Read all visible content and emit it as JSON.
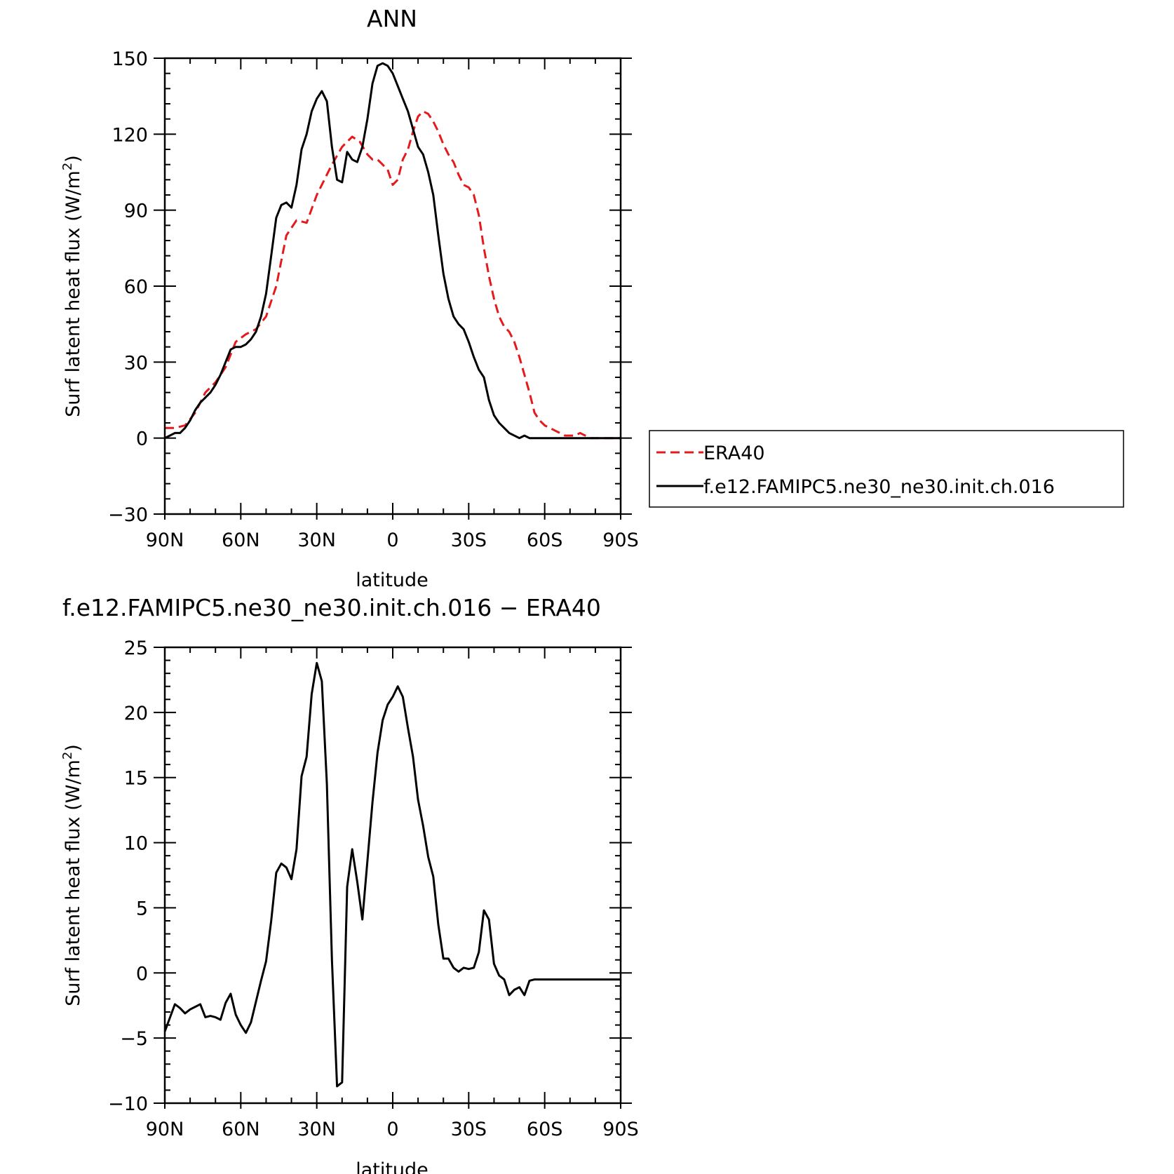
{
  "chart_data": [
    {
      "type": "line",
      "title": "ANN",
      "xlabel": "latitude",
      "ylabel": "Surf latent heat flux (W/m²)",
      "ylabel_main": "Surf latent heat flux (W/m",
      "ylabel_sup": "2",
      "ylabel_close": ")",
      "xlim": [
        90,
        -90
      ],
      "ylim": [
        -30,
        150
      ],
      "x_ticks": [
        90,
        60,
        30,
        0,
        -30,
        -60,
        -90
      ],
      "x_tick_labels": [
        "90N",
        "60N",
        "30N",
        "0",
        "30S",
        "60S",
        "90S"
      ],
      "y_ticks": [
        -30,
        0,
        30,
        60,
        90,
        120,
        150
      ],
      "y_tick_labels": [
        "−30",
        "0",
        "30",
        "60",
        "90",
        "120",
        "150"
      ],
      "legend": {
        "position": "right",
        "entries": [
          "ERA40",
          "f.e12.FAMIPC5.ne30_ne30.init.ch.016"
        ]
      },
      "series": [
        {
          "name": "ERA40",
          "color": "#e41a1c",
          "dash": "dashed",
          "x": [
            90,
            86,
            82,
            78,
            74,
            70,
            66,
            62,
            58,
            54,
            50,
            46,
            42,
            38,
            34,
            30,
            28,
            26,
            24,
            20,
            16,
            13,
            10,
            8,
            6,
            4,
            2,
            0,
            -2,
            -4,
            -6,
            -8,
            -10,
            -12,
            -14,
            -16,
            -18,
            -20,
            -22,
            -24,
            -26,
            -28,
            -30,
            -32,
            -34,
            -36,
            -38,
            -40,
            -42,
            -44,
            -46,
            -48,
            -50,
            -52,
            -54,
            -56,
            -58,
            -60,
            -62,
            -64,
            -66,
            -68,
            -70,
            -72,
            -74,
            -76,
            -78,
            -80,
            -82,
            -84,
            -86,
            -88,
            -90
          ],
          "y": [
            4,
            4,
            5,
            10,
            18,
            22,
            28,
            38,
            41,
            43,
            48,
            60,
            80,
            86,
            85,
            96,
            100,
            104,
            108,
            115,
            119,
            117,
            112,
            110,
            110,
            108,
            106,
            100,
            102,
            110,
            114,
            121,
            127,
            129,
            128,
            125,
            121,
            116,
            112,
            109,
            104,
            100,
            99,
            96,
            88,
            75,
            64,
            55,
            48,
            44,
            42,
            38,
            32,
            25,
            18,
            10,
            7,
            5,
            4,
            3,
            2,
            1,
            1,
            1,
            2,
            1,
            0,
            0,
            0,
            0,
            0,
            0,
            0
          ]
        },
        {
          "name": "f.e12.FAMIPC5.ne30_ne30.init.ch.016",
          "color": "#000000",
          "dash": "solid",
          "x": [
            90,
            88,
            86,
            84,
            82,
            80,
            78,
            76,
            74,
            72,
            70,
            68,
            66,
            64,
            62,
            60,
            58,
            56,
            54,
            52,
            50,
            48,
            46,
            44,
            42,
            40,
            38,
            36,
            34,
            32,
            30,
            28,
            26,
            24,
            22,
            20,
            18,
            16,
            14,
            12,
            10,
            8,
            6,
            4,
            2,
            0,
            -2,
            -4,
            -6,
            -8,
            -10,
            -12,
            -14,
            -16,
            -18,
            -20,
            -22,
            -24,
            -26,
            -28,
            -30,
            -32,
            -34,
            -36,
            -38,
            -40,
            -42,
            -44,
            -46,
            -48,
            -50,
            -52,
            -54,
            -56,
            -58,
            -60,
            -62,
            -64,
            -66,
            -68,
            -70,
            -72,
            -74,
            -76,
            -78,
            -80,
            -82,
            -84,
            -86,
            -88,
            -90
          ],
          "y": [
            0,
            1,
            2,
            2,
            4,
            7,
            11,
            14,
            16,
            18,
            21,
            25,
            30,
            35,
            36,
            36,
            37,
            39,
            42,
            48,
            57,
            72,
            87,
            92,
            93,
            91,
            100,
            114,
            120,
            129,
            134,
            137,
            133,
            115,
            102,
            101,
            113,
            110,
            109,
            115,
            126,
            140,
            147,
            148,
            147,
            144,
            139,
            134,
            129,
            122,
            115,
            112,
            105,
            96,
            80,
            65,
            55,
            48,
            45,
            43,
            38,
            32,
            27,
            24,
            15,
            9,
            6,
            4,
            2,
            1,
            0,
            1,
            0,
            0,
            0,
            0,
            0,
            0,
            0,
            0,
            0,
            0,
            0,
            0,
            0,
            0,
            0,
            0,
            0,
            0,
            0
          ]
        }
      ]
    },
    {
      "type": "line",
      "title": "f.e12.FAMIPC5.ne30_ne30.init.ch.016 − ERA40",
      "xlabel": "latitude",
      "ylabel": "Surf latent heat flux (W/m²)",
      "ylabel_main": "Surf latent heat flux (W/m",
      "ylabel_sup": "2",
      "ylabel_close": ")",
      "xlim": [
        90,
        -90
      ],
      "ylim": [
        -10,
        25
      ],
      "x_ticks": [
        90,
        60,
        30,
        0,
        -30,
        -60,
        -90
      ],
      "x_tick_labels": [
        "90N",
        "60N",
        "30N",
        "0",
        "30S",
        "60S",
        "90S"
      ],
      "y_ticks": [
        -10,
        -5,
        0,
        5,
        10,
        15,
        20,
        25
      ],
      "y_tick_labels": [
        "−10",
        "−5",
        "0",
        "5",
        "10",
        "15",
        "20",
        "25"
      ],
      "series": [
        {
          "color": "#000000",
          "dash": "solid",
          "x": [
            90,
            86,
            84,
            82,
            80,
            76,
            74,
            72,
            70,
            68,
            66,
            64,
            62,
            60,
            58,
            56,
            54,
            52,
            50,
            48,
            46,
            44,
            42,
            40,
            38,
            36,
            34,
            32,
            30,
            28,
            26,
            24,
            22,
            20,
            18,
            16,
            14,
            12,
            10,
            8,
            6,
            4,
            2,
            0,
            -2,
            -4,
            -6,
            -8,
            -10,
            -12,
            -14,
            -16,
            -18,
            -20,
            -22,
            -24,
            -26,
            -28,
            -30,
            -32,
            -34,
            -36,
            -38,
            -40,
            -42,
            -44,
            -46,
            -48,
            -50,
            -52,
            -54,
            -56,
            -58,
            -60,
            -62,
            -64,
            -66,
            -68,
            -70,
            -72,
            -74,
            -76,
            -78,
            -80,
            -82,
            -84,
            -86,
            -88,
            -90
          ],
          "y": [
            -4.5,
            -2.4,
            -2.7,
            -3.1,
            -2.8,
            -2.4,
            -3.4,
            -3.3,
            -3.4,
            -3.6,
            -2.3,
            -1.6,
            -3.2,
            -4,
            -4.6,
            -3.8,
            -2.2,
            -0.6,
            0.9,
            4,
            7.7,
            8.4,
            8.1,
            7.2,
            9.5,
            15.1,
            16.6,
            21.4,
            23.8,
            22.4,
            14.5,
            1,
            -8.7,
            -8.4,
            6.6,
            9.5,
            7,
            4.1,
            8.6,
            13.1,
            16.9,
            19.4,
            20.6,
            21.2,
            22,
            21.2,
            18.8,
            16.6,
            13.3,
            11.3,
            8.9,
            7.4,
            3.7,
            1.1,
            1.1,
            0.4,
            0.1,
            0.4,
            0.3,
            0.4,
            1.6,
            4.8,
            4.1,
            0.7,
            -0.2,
            -0.5,
            -1.7,
            -1.3,
            -1.1,
            -1.7,
            -0.6,
            -0.5,
            -0.5,
            -0.5,
            -0.5,
            -0.5,
            -0.5,
            -0.5,
            -0.5,
            -0.5,
            -0.5,
            -0.5,
            -0.5,
            -0.5,
            -0.5,
            -0.5,
            -0.5,
            -0.5,
            -0.5
          ]
        }
      ]
    }
  ]
}
